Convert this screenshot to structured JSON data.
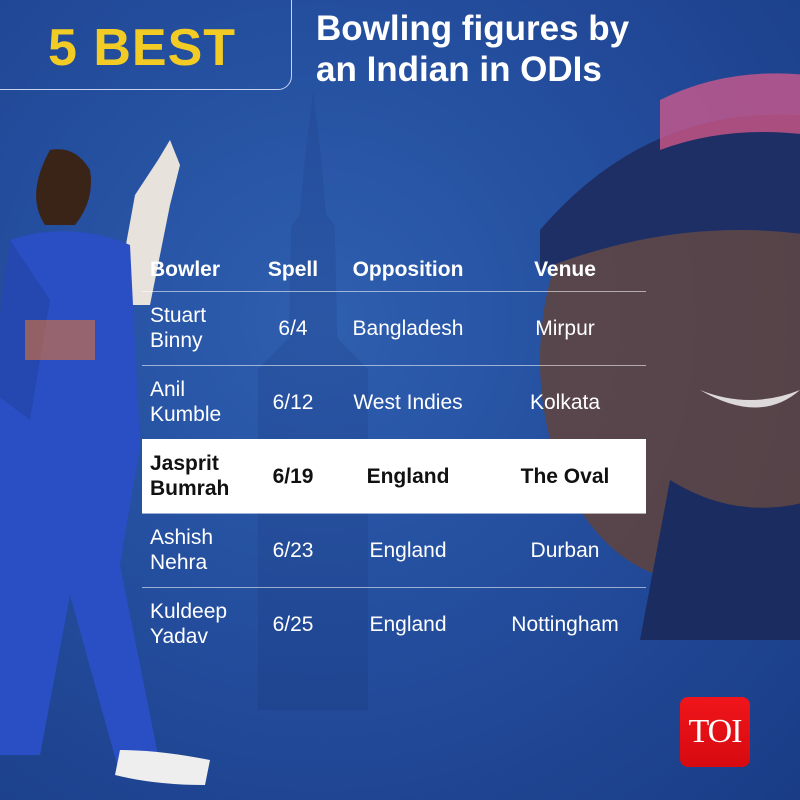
{
  "header": {
    "highlight": "5 BEST",
    "title_line1": "Bowling figures by",
    "title_line2": "an Indian in ODIs"
  },
  "table": {
    "columns": [
      "Bowler",
      "Spell",
      "Opposition",
      "Venue"
    ],
    "rows": [
      {
        "bowler_first": "Stuart",
        "bowler_last": "Binny",
        "spell": "6/4",
        "opposition": "Bangladesh",
        "venue": "Mirpur"
      },
      {
        "bowler_first": "Anil",
        "bowler_last": "Kumble",
        "spell": "6/12",
        "opposition": "West Indies",
        "venue": "Kolkata"
      },
      {
        "bowler_first": "Jasprit",
        "bowler_last": "Bumrah",
        "spell": "6/19",
        "opposition": "England",
        "venue": "The Oval",
        "highlighted": true
      },
      {
        "bowler_first": "Ashish",
        "bowler_last": "Nehra",
        "spell": "6/23",
        "opposition": "England",
        "venue": "Durban"
      },
      {
        "bowler_first": "Kuldeep",
        "bowler_last": "Yadav",
        "spell": "6/25",
        "opposition": "England",
        "venue": "Nottingham"
      }
    ]
  },
  "logo": {
    "text": "TOI",
    "color": "#e50e14"
  },
  "colors": {
    "background": "#244e9e",
    "accent": "#f2cc25"
  }
}
